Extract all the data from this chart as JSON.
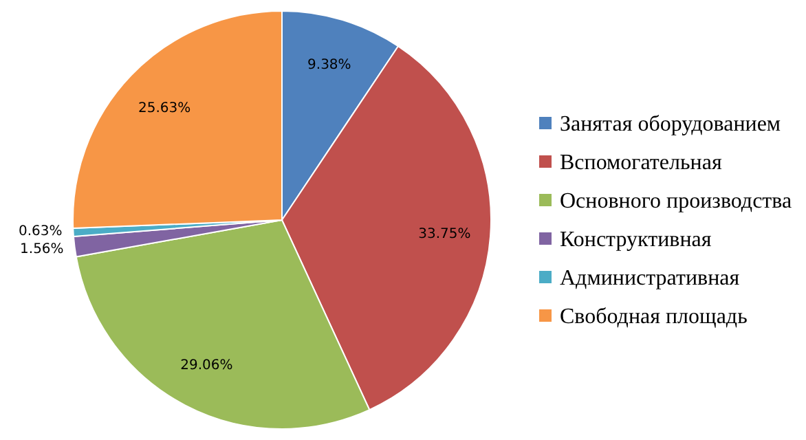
{
  "chart_data": {
    "type": "pie",
    "categories": [
      "Занятая оборудованием",
      "Вспомогательная",
      "Основного производства",
      "Конструктивная",
      "Административная",
      "Свободная площадь"
    ],
    "values": [
      9.38,
      33.75,
      29.06,
      1.56,
      0.63,
      25.63
    ],
    "value_labels": [
      "9.38%",
      "33.75%",
      "29.06%",
      "1.56%",
      "0.63%",
      "25.63%"
    ],
    "colors": [
      "#4f81bd",
      "#c0504d",
      "#9bbb59",
      "#8064a2",
      "#4bacc6",
      "#f79646"
    ],
    "legend": "right"
  }
}
